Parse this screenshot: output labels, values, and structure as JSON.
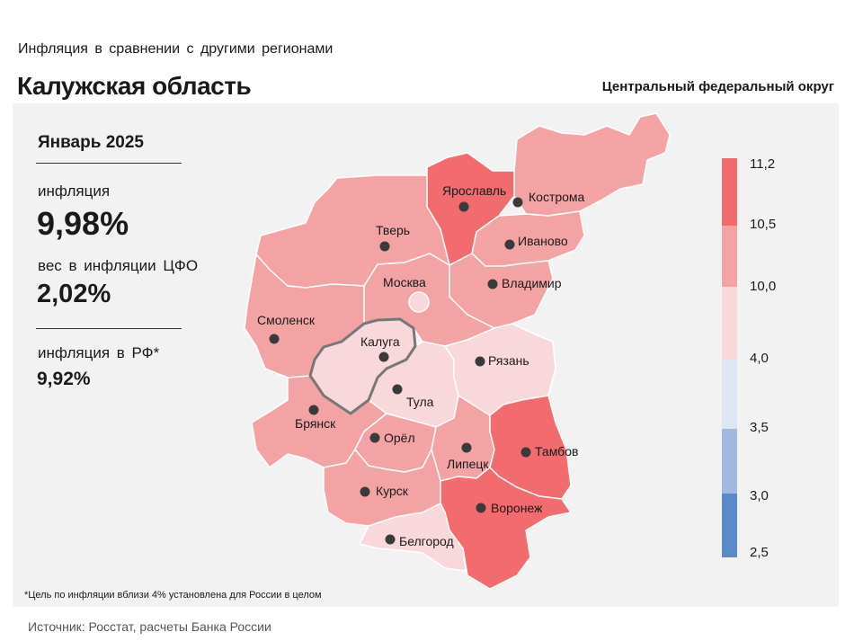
{
  "header": {
    "subtitle": "Инфляция в сравнении с другими регионами",
    "region": "Калужская область",
    "district": "Центральный федеральный округ"
  },
  "stats": {
    "period": "Январь 2025",
    "inflation_label": "инфляция",
    "inflation_value": "9,98%",
    "weight_label": "вес в инфляции ЦФО",
    "weight_value": "2,02%",
    "rf_label": "инфляция в РФ*",
    "rf_value": "9,92%"
  },
  "map": {
    "highlighted_region": "Калуга",
    "color_classes": {
      "11.2": "#f26b6e",
      "10.5": "#f4a3a5",
      "10.0": "#f9d8db",
      "4.0": "#dde7f4",
      "3.5": "#9fbade",
      "3.0": "#5b8ac8"
    },
    "regions": [
      {
        "id": "kostroma",
        "name": "Кострома",
        "class": "10.5"
      },
      {
        "id": "yaroslavl",
        "name": "Ярославль",
        "class": "11.2"
      },
      {
        "id": "tver",
        "name": "Тверь",
        "class": "10.5"
      },
      {
        "id": "ivanovo",
        "name": "Иваново",
        "class": "10.5"
      },
      {
        "id": "vladimir",
        "name": "Владимир",
        "class": "10.5"
      },
      {
        "id": "moscow",
        "name": "Москва",
        "class": "10.5"
      },
      {
        "id": "smolensk",
        "name": "Смоленск",
        "class": "10.5"
      },
      {
        "id": "kaluga",
        "name": "Калуга",
        "class": "10.0"
      },
      {
        "id": "tula",
        "name": "Тула",
        "class": "10.0"
      },
      {
        "id": "ryazan",
        "name": "Рязань",
        "class": "10.0"
      },
      {
        "id": "bryansk",
        "name": "Брянск",
        "class": "10.5"
      },
      {
        "id": "orel",
        "name": "Орёл",
        "class": "10.5"
      },
      {
        "id": "lipetsk",
        "name": "Липецк",
        "class": "10.5"
      },
      {
        "id": "tambov",
        "name": "Тамбов",
        "class": "11.2"
      },
      {
        "id": "kursk",
        "name": "Курск",
        "class": "10.5"
      },
      {
        "id": "voronezh",
        "name": "Воронеж",
        "class": "11.2"
      },
      {
        "id": "belgorod",
        "name": "Белгород",
        "class": "10.0"
      }
    ]
  },
  "legend": {
    "ticks": [
      "11,2",
      "10,5",
      "10,0",
      "4,0",
      "3,5",
      "3,0",
      "2,5"
    ],
    "colors": [
      "#f26b6e",
      "#f4a3a5",
      "#f9d8db",
      "#dde7f4",
      "#9fbade",
      "#5b8ac8"
    ]
  },
  "footnote": "*Цель по инфляции вблизи 4% установлена для России в целом",
  "source": "Источник: Росстат, расчеты Банка России"
}
